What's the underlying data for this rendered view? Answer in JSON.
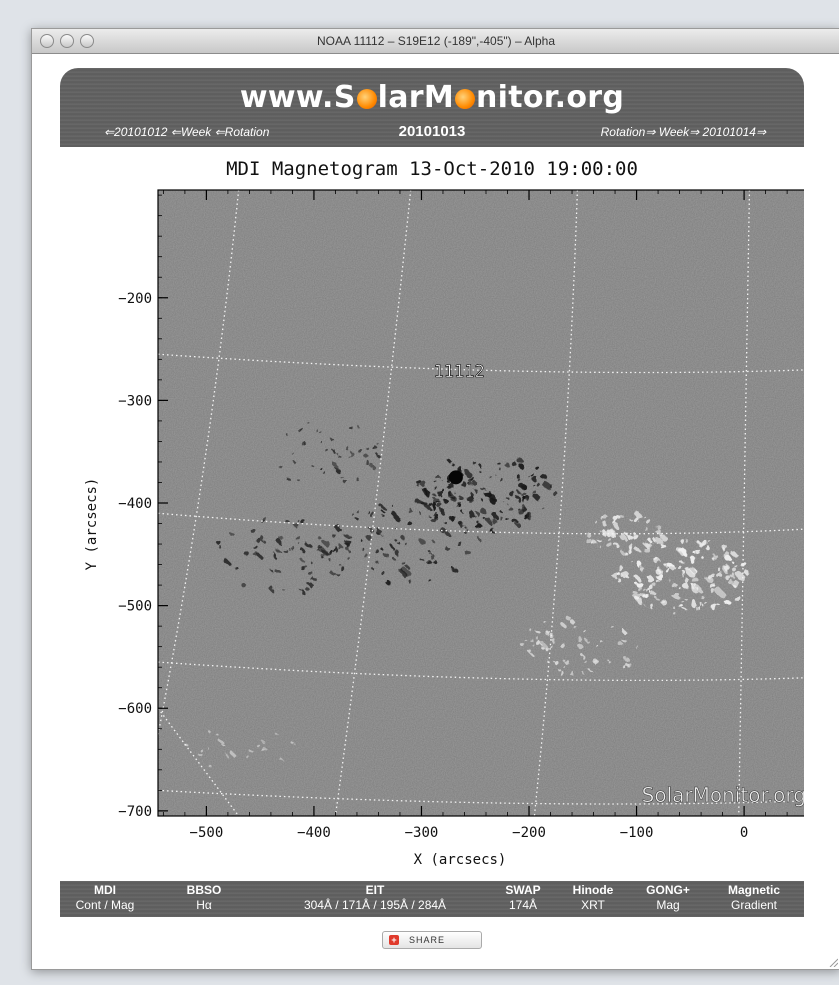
{
  "window": {
    "title": "NOAA 11112 – S19E12 (-189\",-405\") – Alpha"
  },
  "banner": {
    "logo_parts": [
      "www.S",
      "larM",
      "nitor.org"
    ],
    "nav_left": "⇐20101012 ⇐Week ⇐Rotation",
    "date": "20101013",
    "nav_right": "Rotation⇒ Week⇒ 20101014⇒"
  },
  "chart_data": {
    "type": "heatmap",
    "title": "MDI Magnetogram 13-Oct-2010 19:00:00",
    "xlabel": "X (arcsecs)",
    "ylabel": "Y (arcsecs)",
    "xlim": [
      -545,
      65
    ],
    "ylim": [
      -705,
      -95
    ],
    "xticks": [
      -500,
      -400,
      -300,
      -200,
      -100,
      0
    ],
    "yticks": [
      -700,
      -600,
      -500,
      -400,
      -300,
      -200
    ],
    "x_tick_labels": [
      "−500",
      "−400",
      "−300",
      "−200",
      "−100",
      "0"
    ],
    "y_tick_labels": [
      "−700",
      "−600",
      "−500",
      "−400",
      "−300",
      "−200"
    ],
    "region_label": {
      "text": "11112",
      "x": -265,
      "y": -277
    },
    "watermark": "SolarMonitor.org",
    "colormap": "grayscale",
    "background_color": "#7b7b7b",
    "grid": true
  },
  "toolbar": {
    "items": [
      {
        "top": "MDI",
        "bottom": "Cont / Mag"
      },
      {
        "top": "BBSO",
        "bottom": "Hα"
      },
      {
        "top": "EIT",
        "bottom": "304Å / 171Å / 195Å / 284Å"
      },
      {
        "top": "SWAP",
        "bottom": "174Å"
      },
      {
        "top": "Hinode",
        "bottom": "XRT"
      },
      {
        "top": "GONG+",
        "bottom": "Mag"
      },
      {
        "top": "Magnetic",
        "bottom": "Gradient"
      }
    ]
  },
  "share": {
    "label": "SHARE"
  }
}
